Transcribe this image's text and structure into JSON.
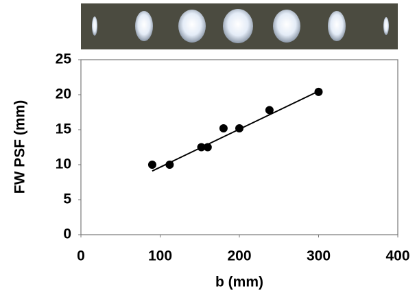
{
  "chart_data": {
    "type": "scatter",
    "x_label": "b (mm)",
    "y_label": "FW PSF (mm)",
    "x": [
      90,
      112,
      152,
      160,
      180,
      200,
      238,
      300
    ],
    "values": [
      10,
      10,
      12.5,
      12.5,
      15.2,
      15.2,
      17.8,
      20.4
    ],
    "color": "#000000",
    "fit_line": {
      "x": [
        90,
        300
      ],
      "values": [
        9.1,
        20.5
      ]
    },
    "xlim": [
      0,
      400
    ],
    "xticks": [
      0,
      100,
      200,
      300,
      400
    ],
    "ylim": [
      0,
      25
    ],
    "yticks": [
      0,
      5,
      10,
      15,
      20,
      25
    ],
    "grid": false
  }
}
